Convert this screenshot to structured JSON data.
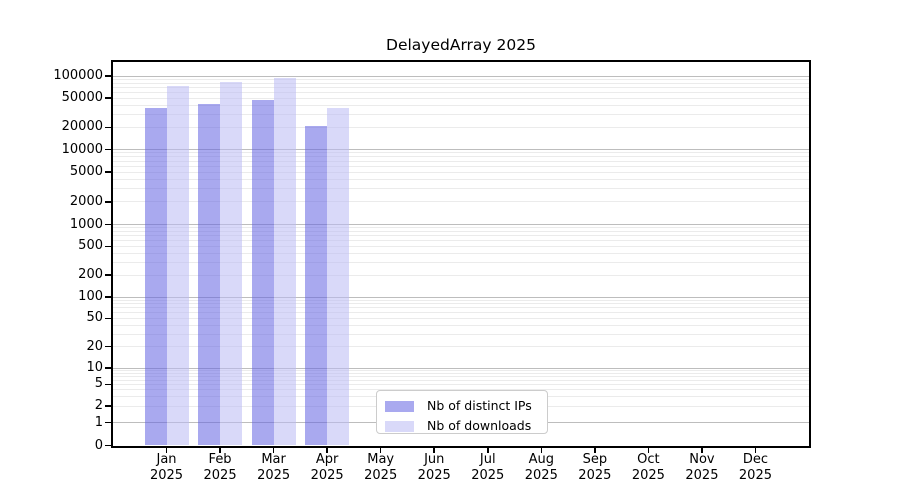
{
  "chart_data": {
    "type": "bar",
    "title": "DelayedArray 2025",
    "months": [
      "Jan",
      "Feb",
      "Mar",
      "Apr",
      "May",
      "Jun",
      "Jul",
      "Aug",
      "Sep",
      "Oct",
      "Nov",
      "Dec"
    ],
    "year": "2025",
    "series": [
      {
        "name": "Nb of distinct IPs",
        "color": "#6363E2",
        "alpha": 0.55,
        "values": [
          37000,
          42000,
          47000,
          21000,
          null,
          null,
          null,
          null,
          null,
          null,
          null,
          null
        ]
      },
      {
        "name": "Nb of downloads",
        "color": "#BABAF4",
        "alpha": 0.55,
        "values": [
          74000,
          84000,
          93500,
          36300,
          null,
          null,
          null,
          null,
          null,
          null,
          null,
          null
        ]
      }
    ],
    "yticks": [
      0,
      1,
      2,
      5,
      10,
      20,
      50,
      100,
      200,
      500,
      1000,
      2000,
      5000,
      10000,
      20000,
      50000,
      100000
    ],
    "ylim": [
      0,
      160000
    ],
    "yscale": "log-like with zero baseline",
    "grid": "horizontal, major decades darker + log minors lighter",
    "legend_position": "bottom-center inside plot",
    "colors": {
      "major_grid": "#bdbdbd",
      "minor_grid": "#ebebeb",
      "axis": "#000000",
      "background": "#ffffff"
    }
  }
}
